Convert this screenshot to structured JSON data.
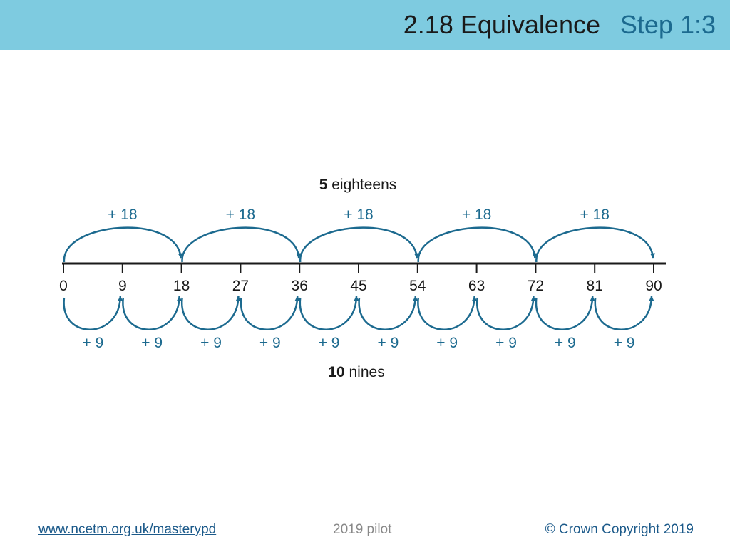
{
  "header": {
    "title": "2.18 Equivalence",
    "step": "Step 1:3"
  },
  "diagram": {
    "top_label": {
      "number": "5",
      "text": "eighteens"
    },
    "bottom_label": {
      "number": "10",
      "text": "nines"
    },
    "ticks": [
      "0",
      "9",
      "18",
      "27",
      "36",
      "45",
      "54",
      "63",
      "72",
      "81",
      "90"
    ],
    "large_jumps": [
      "+ 18",
      "+ 18",
      "+ 18",
      "+ 18",
      "+ 18"
    ],
    "small_jumps": [
      "+ 9",
      "+ 9",
      "+ 9",
      "+ 9",
      "+ 9",
      "+ 9",
      "+ 9",
      "+ 9",
      "+ 9",
      "+ 9"
    ],
    "arrow_color": "#1c6a8f"
  },
  "footer": {
    "link": "www.ncetm.org.uk/masterypd",
    "pilot": "2019 pilot",
    "copyright": "© Crown Copyright 2019"
  }
}
